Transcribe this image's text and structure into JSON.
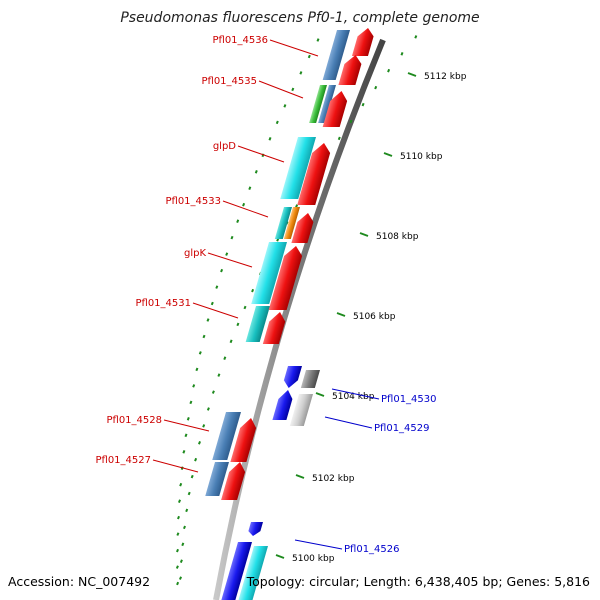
{
  "title": "Pseudomonas fluorescens Pf0-1, complete genome",
  "footer": {
    "accession": "Accession: NC_007492",
    "topology": "Topology: circular; Length: 6,438,405 bp; Genes: 5,816"
  },
  "ticks": [
    {
      "label": "5112 kbp"
    },
    {
      "label": "5110 kbp"
    },
    {
      "label": "5108 kbp"
    },
    {
      "label": "5106 kbp"
    },
    {
      "label": "5104 kbp"
    },
    {
      "label": "5102 kbp"
    },
    {
      "label": "5100 kbp"
    }
  ],
  "labels_red": [
    {
      "text": "Pfl01_4536"
    },
    {
      "text": "Pfl01_4535"
    },
    {
      "text": "glpD"
    },
    {
      "text": "Pfl01_4533"
    },
    {
      "text": "glpK"
    },
    {
      "text": "Pfl01_4531"
    },
    {
      "text": "Pfl01_4528"
    },
    {
      "text": "Pfl01_4527"
    }
  ],
  "labels_blue": [
    {
      "text": "Pfl01_4530"
    },
    {
      "text": "Pfl01_4529"
    },
    {
      "text": "Pfl01_4526"
    }
  ],
  "colors": {
    "backbone": "#8a8a8a",
    "tick": "#1e8a1e",
    "label_red": "#cc0000",
    "label_blue": "#0000cc",
    "forward": "#ee1111",
    "steel": "#4a7fb5",
    "cyan": "#22e0e8",
    "green": "#3cbf3c",
    "orange": "#f08a10",
    "blue": "#1a1aee",
    "gray": "#888888"
  }
}
